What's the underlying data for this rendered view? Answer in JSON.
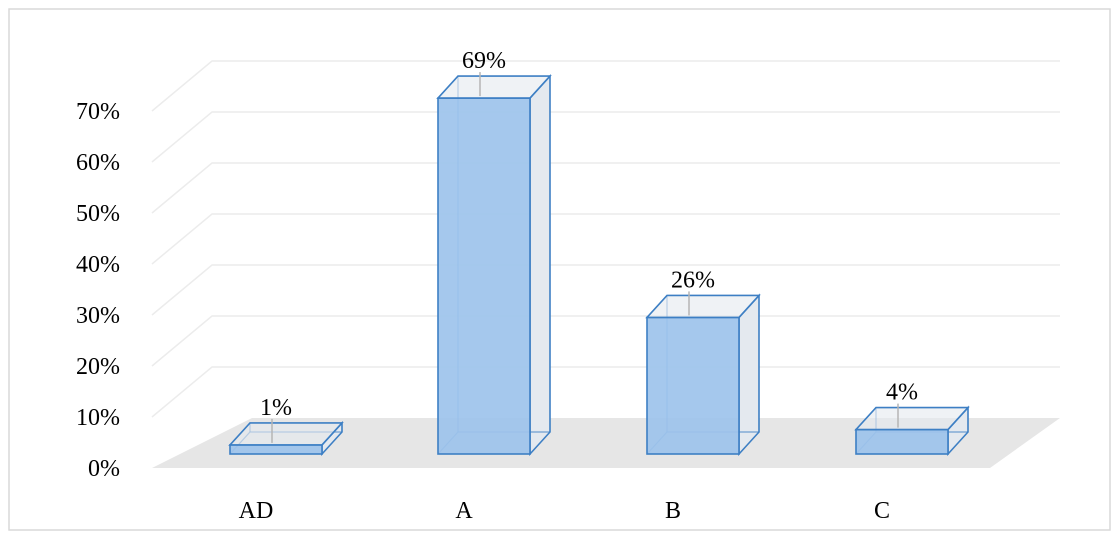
{
  "chart_data": {
    "type": "bar",
    "style": "3d-column",
    "categories": [
      "AD",
      "A",
      "B",
      "C"
    ],
    "values": [
      1,
      69,
      26,
      4
    ],
    "data_labels": [
      "1%",
      "69%",
      "26%",
      "4%"
    ],
    "y_ticks": [
      "0%",
      "10%",
      "20%",
      "30%",
      "40%",
      "50%",
      "60%",
      "70%"
    ],
    "ylim": [
      0,
      70
    ],
    "grid": true,
    "legend": "none",
    "title": "",
    "xlabel": "",
    "ylabel": "",
    "colors": {
      "bar_fill": "#9dc3ec",
      "bar_edge": "#3d7fc4",
      "bar_side": "#e4e9ef",
      "floor": "#e6e6e6",
      "grid": "#ececec",
      "frame": "#d9d9d9"
    }
  }
}
